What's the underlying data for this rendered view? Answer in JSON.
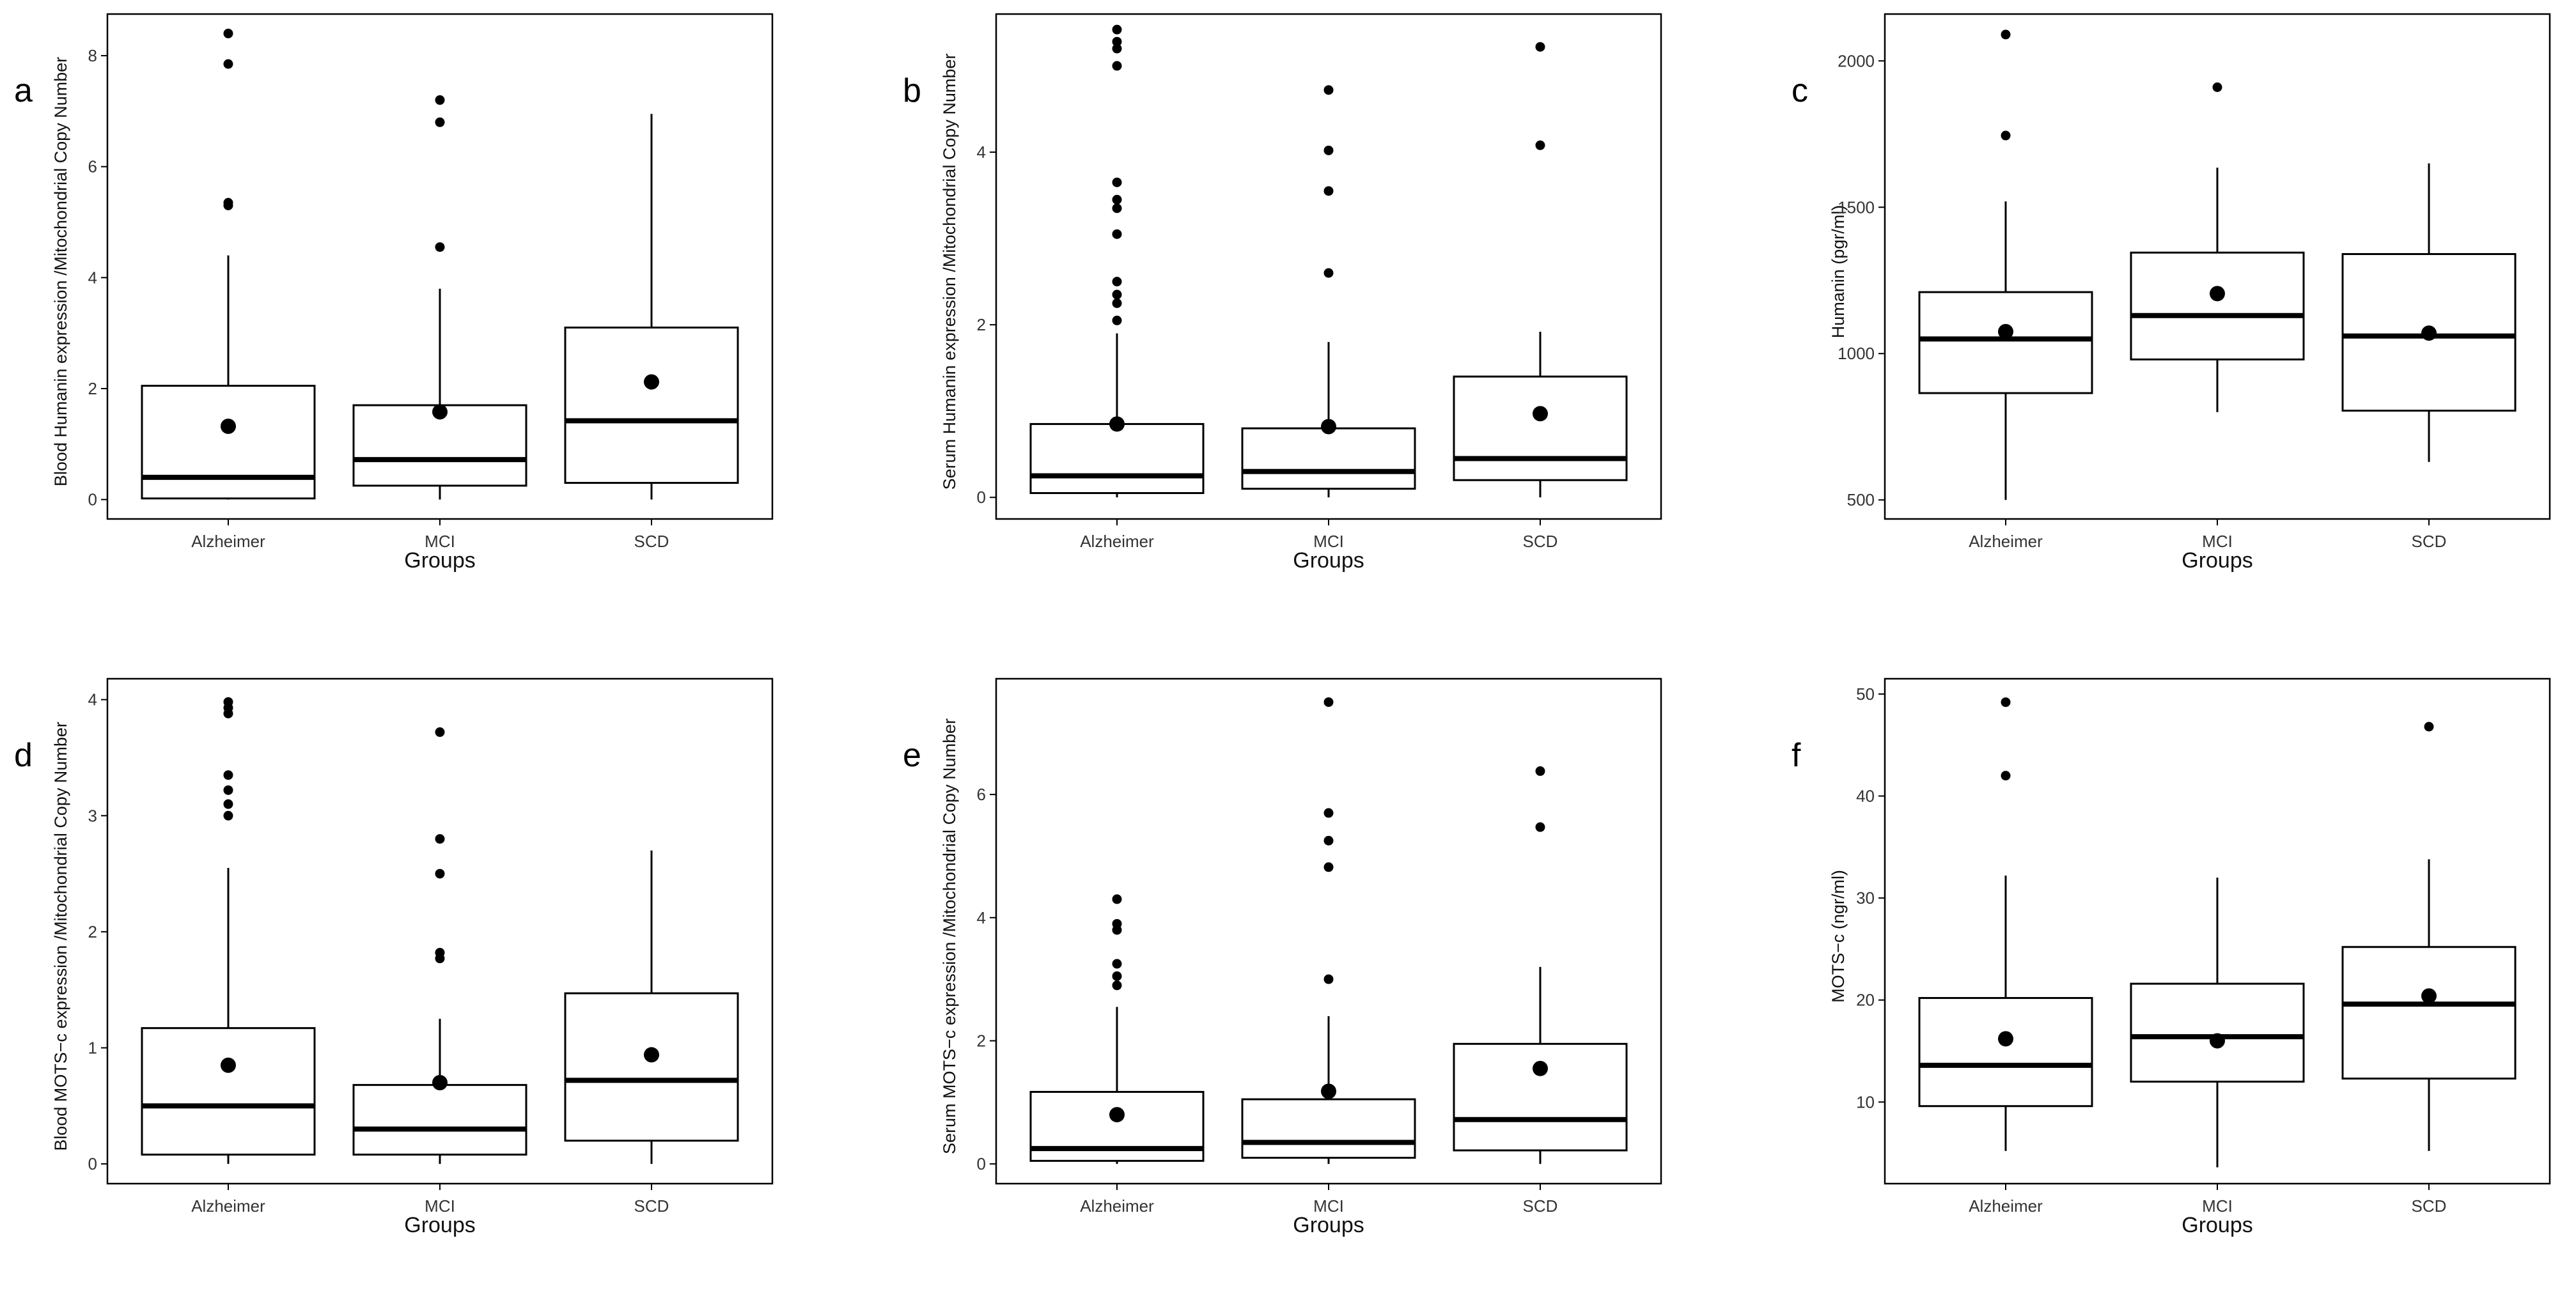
{
  "chart_data": [
    {
      "id": "a",
      "panel_label": "a",
      "type": "box",
      "title": "",
      "xlabel": "Groups",
      "ylabel": "Blood Humanin expression /Mitochondrial Copy Number",
      "categories": [
        "Alzheimer",
        "MCI",
        "SCD"
      ],
      "ylim": [
        -0.35,
        8.75
      ],
      "yticks": [
        0,
        2,
        4,
        6,
        8
      ],
      "ytick_labels": [
        "0",
        "2",
        "4",
        "6",
        "8"
      ],
      "boxes": [
        {
          "group": "Alzheimer",
          "min": 0.0,
          "q1": 0.02,
          "median": 0.4,
          "q3": 2.05,
          "max": 4.4,
          "mean": 1.32,
          "outliers": [
            5.3,
            5.35,
            7.85,
            8.4
          ]
        },
        {
          "group": "MCI",
          "min": 0.0,
          "q1": 0.25,
          "median": 0.72,
          "q3": 1.7,
          "max": 3.8,
          "mean": 1.58,
          "outliers": [
            4.55,
            6.8,
            7.2
          ]
        },
        {
          "group": "SCD",
          "min": 0.0,
          "q1": 0.3,
          "median": 1.42,
          "q3": 3.1,
          "max": 6.95,
          "mean": 2.12,
          "outliers": []
        }
      ]
    },
    {
      "id": "b",
      "panel_label": "b",
      "type": "box",
      "title": "",
      "xlabel": "Groups",
      "ylabel": "Serum Humanin expression /Mitochondrial Copy Number",
      "categories": [
        "Alzheimer",
        "MCI",
        "SCD"
      ],
      "ylim": [
        -0.25,
        5.6
      ],
      "yticks": [
        0,
        2,
        4
      ],
      "ytick_labels": [
        "0",
        "2",
        "4"
      ],
      "boxes": [
        {
          "group": "Alzheimer",
          "min": 0.0,
          "q1": 0.05,
          "median": 0.25,
          "q3": 0.85,
          "max": 1.9,
          "mean": 0.85,
          "outliers": [
            2.05,
            2.25,
            2.35,
            2.5,
            3.05,
            3.35,
            3.45,
            3.65,
            5.0,
            5.2,
            5.28,
            5.42
          ]
        },
        {
          "group": "MCI",
          "min": 0.0,
          "q1": 0.1,
          "median": 0.3,
          "q3": 0.8,
          "max": 1.8,
          "mean": 0.82,
          "outliers": [
            2.6,
            3.55,
            4.02,
            4.72
          ]
        },
        {
          "group": "SCD",
          "min": 0.0,
          "q1": 0.2,
          "median": 0.45,
          "q3": 1.4,
          "max": 1.92,
          "mean": 0.97,
          "outliers": [
            4.08,
            5.22
          ]
        }
      ]
    },
    {
      "id": "c",
      "panel_label": "c",
      "type": "box",
      "title": "",
      "xlabel": "Groups",
      "ylabel": "Humanin (pgr/ml)",
      "categories": [
        "Alzheimer",
        "MCI",
        "SCD"
      ],
      "ylim": [
        435,
        2160
      ],
      "yticks": [
        500,
        1000,
        1500,
        2000
      ],
      "ytick_labels": [
        "500",
        "1000",
        "1500",
        "2000"
      ],
      "boxes": [
        {
          "group": "Alzheimer",
          "min": 500,
          "q1": 865,
          "median": 1050,
          "q3": 1210,
          "max": 1520,
          "mean": 1075,
          "outliers": [
            1745,
            2090
          ]
        },
        {
          "group": "MCI",
          "min": 800,
          "q1": 980,
          "median": 1130,
          "q3": 1345,
          "max": 1635,
          "mean": 1205,
          "outliers": [
            1910
          ]
        },
        {
          "group": "SCD",
          "min": 630,
          "q1": 805,
          "median": 1060,
          "q3": 1340,
          "max": 1650,
          "mean": 1070,
          "outliers": []
        }
      ]
    },
    {
      "id": "d",
      "panel_label": "d",
      "type": "box",
      "title": "",
      "xlabel": "Groups",
      "ylabel": "Blood MOTS−c expression /Mitochondrial Copy Number",
      "categories": [
        "Alzheimer",
        "MCI",
        "SCD"
      ],
      "ylim": [
        -0.17,
        4.18
      ],
      "yticks": [
        0,
        1,
        2,
        3,
        4
      ],
      "ytick_labels": [
        "0",
        "1",
        "2",
        "3",
        "4"
      ],
      "boxes": [
        {
          "group": "Alzheimer",
          "min": 0.0,
          "q1": 0.08,
          "median": 0.5,
          "q3": 1.17,
          "max": 2.55,
          "mean": 0.85,
          "outliers": [
            3.0,
            3.1,
            3.22,
            3.35,
            3.88,
            3.93,
            3.98
          ]
        },
        {
          "group": "MCI",
          "min": 0.0,
          "q1": 0.08,
          "median": 0.3,
          "q3": 0.68,
          "max": 1.25,
          "mean": 0.7,
          "outliers": [
            1.77,
            1.82,
            2.5,
            2.8,
            3.72
          ]
        },
        {
          "group": "SCD",
          "min": 0.0,
          "q1": 0.2,
          "median": 0.72,
          "q3": 1.47,
          "max": 2.7,
          "mean": 0.94,
          "outliers": []
        }
      ]
    },
    {
      "id": "e",
      "panel_label": "e",
      "type": "box",
      "title": "",
      "xlabel": "Groups",
      "ylabel": "Serum MOTS−c expression /Mitochondrial Copy Number",
      "categories": [
        "Alzheimer",
        "MCI",
        "SCD"
      ],
      "ylim": [
        -0.32,
        7.88
      ],
      "yticks": [
        0,
        2,
        4,
        6
      ],
      "ytick_labels": [
        "0",
        "2",
        "4",
        "6"
      ],
      "boxes": [
        {
          "group": "Alzheimer",
          "min": 0.0,
          "q1": 0.05,
          "median": 0.25,
          "q3": 1.17,
          "max": 2.55,
          "mean": 0.8,
          "outliers": [
            2.9,
            3.05,
            3.25,
            3.8,
            3.9,
            4.3
          ]
        },
        {
          "group": "MCI",
          "min": 0.0,
          "q1": 0.1,
          "median": 0.35,
          "q3": 1.05,
          "max": 2.4,
          "mean": 1.18,
          "outliers": [
            3.0,
            4.82,
            5.25,
            5.7,
            7.5
          ]
        },
        {
          "group": "SCD",
          "min": 0.0,
          "q1": 0.22,
          "median": 0.72,
          "q3": 1.95,
          "max": 3.2,
          "mean": 1.55,
          "outliers": [
            5.47,
            6.38
          ]
        }
      ]
    },
    {
      "id": "f",
      "panel_label": "f",
      "type": "box",
      "title": "",
      "xlabel": "Groups",
      "ylabel": "MOTS−c (ngr/ml)",
      "categories": [
        "Alzheimer",
        "MCI",
        "SCD"
      ],
      "ylim": [
        2,
        51.5
      ],
      "yticks": [
        10,
        20,
        30,
        40,
        50
      ],
      "ytick_labels": [
        "10",
        "20",
        "30",
        "40",
        "50"
      ],
      "boxes": [
        {
          "group": "Alzheimer",
          "min": 5.2,
          "q1": 9.6,
          "median": 13.6,
          "q3": 20.2,
          "max": 32.2,
          "mean": 16.2,
          "outliers": [
            42.0,
            49.2
          ]
        },
        {
          "group": "MCI",
          "min": 3.6,
          "q1": 12.0,
          "median": 16.4,
          "q3": 21.6,
          "max": 32.0,
          "mean": 16.0,
          "outliers": []
        },
        {
          "group": "SCD",
          "min": 5.2,
          "q1": 12.3,
          "median": 19.6,
          "q3": 25.2,
          "max": 33.8,
          "mean": 20.4,
          "outliers": [
            46.8
          ]
        }
      ]
    }
  ]
}
